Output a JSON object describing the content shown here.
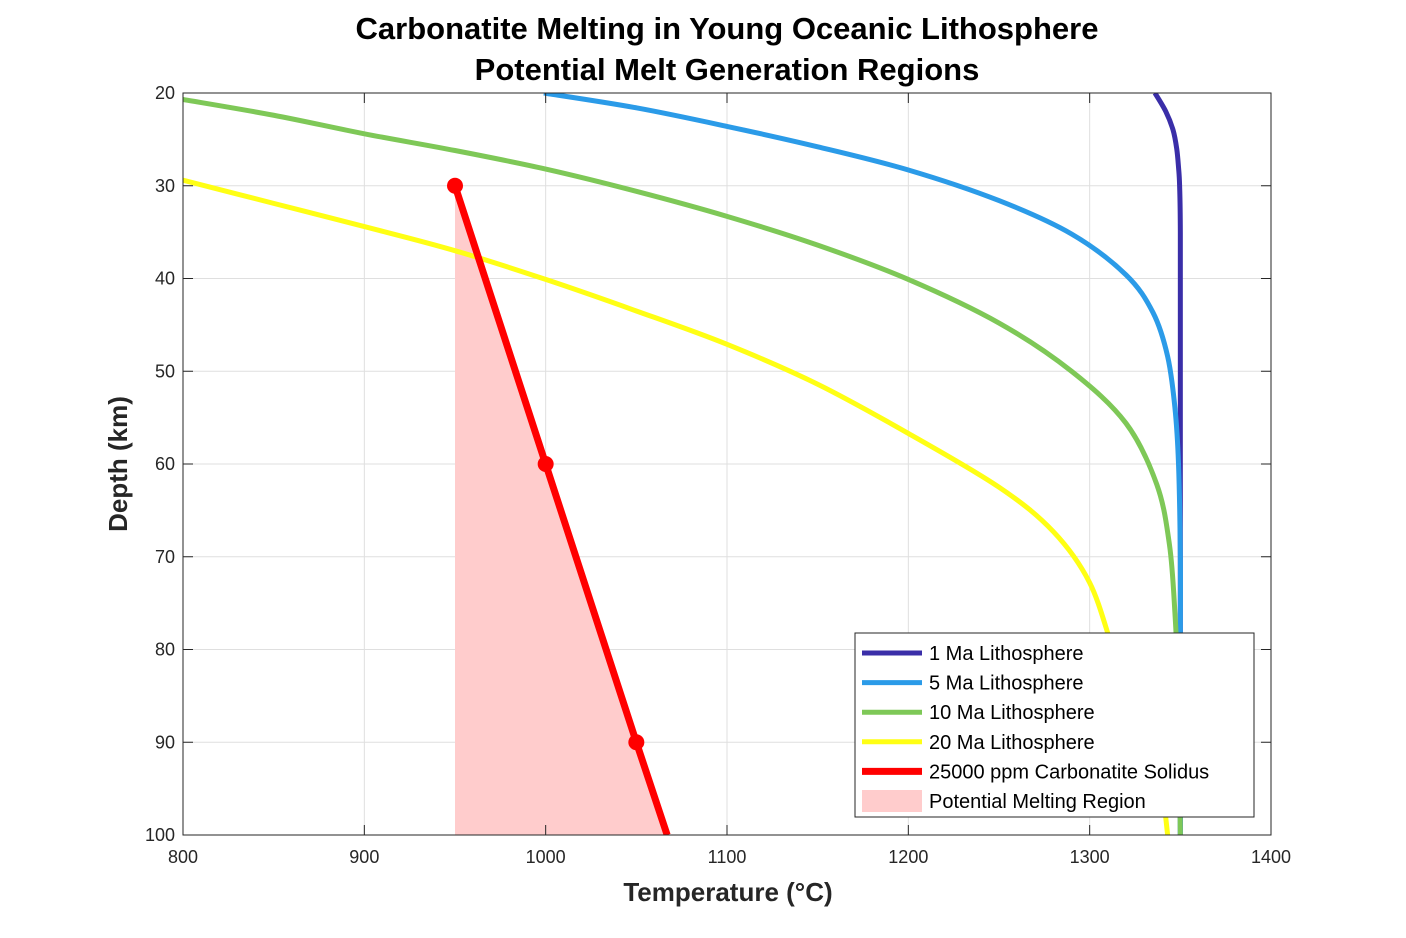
{
  "chart_data": {
    "type": "line",
    "title": "Carbonatite Melting in Young Oceanic Lithosphere",
    "subtitle": "Potential Melt Generation Regions",
    "xlabel": "Temperature (°C)",
    "ylabel": "Depth (km)",
    "xlim": [
      800,
      1400
    ],
    "ylim": [
      20,
      100
    ],
    "y_reversed": true,
    "grid": true,
    "legend_position": "bottom-right",
    "x_ticks": [
      "800",
      "900",
      "1000",
      "1100",
      "1200",
      "1300",
      "1400"
    ],
    "y_ticks": [
      "20",
      "30",
      "40",
      "50",
      "60",
      "70",
      "80",
      "90",
      "100"
    ],
    "series": [
      {
        "name": "1 Ma Lithosphere",
        "color": "#3a2ea8",
        "points": [
          [
            1336,
            20
          ],
          [
            1342,
            22
          ],
          [
            1346,
            24
          ],
          [
            1348,
            26
          ],
          [
            1349,
            28
          ],
          [
            1349.6,
            30
          ],
          [
            1350,
            35
          ],
          [
            1350,
            50
          ],
          [
            1350,
            80
          ],
          [
            1350,
            100
          ]
        ]
      },
      {
        "name": "5 Ma Lithosphere",
        "color": "#2b9be8",
        "points": [
          [
            999,
            20
          ],
          [
            1050,
            21.6
          ],
          [
            1100,
            23.6
          ],
          [
            1150,
            25.8
          ],
          [
            1200,
            28.3
          ],
          [
            1250,
            31.6
          ],
          [
            1290,
            35.2
          ],
          [
            1320,
            39.6
          ],
          [
            1335,
            43.7
          ],
          [
            1343,
            48.4
          ],
          [
            1347,
            53.9
          ],
          [
            1349,
            60
          ],
          [
            1350,
            70
          ],
          [
            1350,
            80
          ],
          [
            1350,
            100
          ]
        ]
      },
      {
        "name": "10 Ma Lithosphere",
        "color": "#7ec857",
        "points": [
          [
            800,
            20.7
          ],
          [
            850,
            22.4
          ],
          [
            900,
            24.4
          ],
          [
            950,
            26.2
          ],
          [
            1000,
            28.2
          ],
          [
            1050,
            30.6
          ],
          [
            1100,
            33.3
          ],
          [
            1150,
            36.4
          ],
          [
            1200,
            40.1
          ],
          [
            1250,
            44.8
          ],
          [
            1290,
            50
          ],
          [
            1320,
            55.6
          ],
          [
            1337,
            62.2
          ],
          [
            1344,
            68.7
          ],
          [
            1347,
            76
          ],
          [
            1349,
            85
          ],
          [
            1350,
            100
          ]
        ]
      },
      {
        "name": "20 Ma Lithosphere",
        "color": "#ffff14",
        "points": [
          [
            800,
            29.4
          ],
          [
            850,
            31.9
          ],
          [
            900,
            34.4
          ],
          [
            950,
            37
          ],
          [
            1000,
            40.1
          ],
          [
            1050,
            43.5
          ],
          [
            1100,
            47.1
          ],
          [
            1150,
            51.4
          ],
          [
            1200,
            56.7
          ],
          [
            1250,
            62.5
          ],
          [
            1280,
            67.3
          ],
          [
            1300,
            72.8
          ],
          [
            1313,
            80
          ],
          [
            1322,
            84.1
          ],
          [
            1336,
            91.1
          ],
          [
            1340,
            95
          ],
          [
            1343,
            100
          ]
        ]
      },
      {
        "name": "25000 ppm Carbonatite Solidus",
        "color": "#ff0000",
        "markers": [
          [
            950,
            30
          ],
          [
            1000,
            60
          ],
          [
            1050,
            90
          ]
        ],
        "points": [
          [
            950,
            30
          ],
          [
            1000,
            60
          ],
          [
            1050,
            90
          ],
          [
            1067,
            100
          ]
        ]
      },
      {
        "name": "Potential Melting Region",
        "type": "area",
        "color": "#ffcccc",
        "points": [
          [
            950,
            30
          ],
          [
            1000,
            60
          ],
          [
            1050,
            90
          ],
          [
            1067,
            100
          ],
          [
            950,
            100
          ]
        ]
      }
    ]
  }
}
